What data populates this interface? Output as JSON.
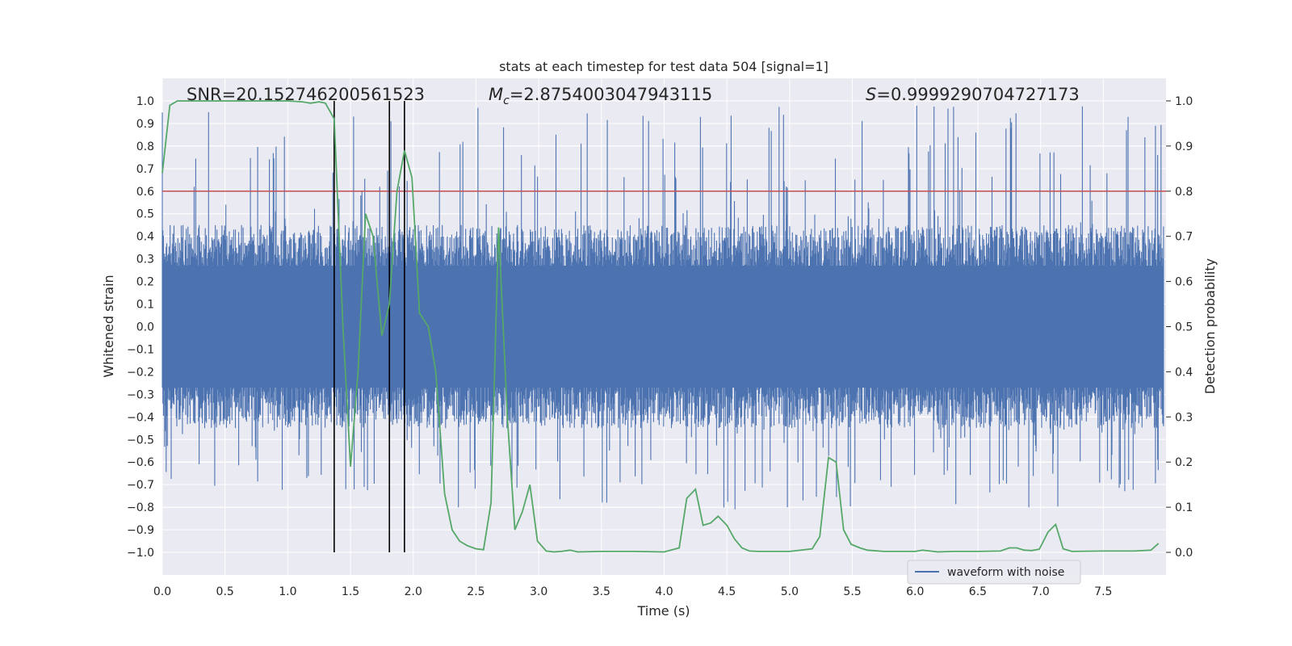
{
  "chart_data": {
    "type": "line",
    "title": "stats at each timestep for test data 504 [signal=1]",
    "xlabel": "Time (s)",
    "ylabel_left": "Whitened strain",
    "ylabel_right": "Detection probability",
    "xlim": [
      0.0,
      8.0
    ],
    "ylim_left": [
      -1.1,
      1.1
    ],
    "ylim_right": [
      -0.05,
      1.05
    ],
    "x_ticks": [
      0.0,
      0.5,
      1.0,
      1.5,
      2.0,
      2.5,
      3.0,
      3.5,
      4.0,
      4.5,
      5.0,
      5.5,
      6.0,
      6.5,
      7.0,
      7.5
    ],
    "x_tick_labels": [
      "0.0",
      "0.5",
      "1.0",
      "1.5",
      "2.0",
      "2.5",
      "3.0",
      "3.5",
      "4.0",
      "4.5",
      "5.0",
      "5.5",
      "6.0",
      "6.5",
      "7.0",
      "7.5"
    ],
    "y_left_ticks": [
      -1.0,
      -0.9,
      -0.8,
      -0.7,
      -0.6,
      -0.5,
      -0.4,
      -0.3,
      -0.2,
      -0.1,
      0.0,
      0.1,
      0.2,
      0.3,
      0.4,
      0.5,
      0.6,
      0.7,
      0.8,
      0.9,
      1.0
    ],
    "y_left_tick_labels": [
      "−1.0",
      "−0.9",
      "−0.8",
      "−0.7",
      "−0.6",
      "−0.5",
      "−0.4",
      "−0.3",
      "−0.2",
      "−0.1",
      "0.0",
      "0.1",
      "0.2",
      "0.3",
      "0.4",
      "0.5",
      "0.6",
      "0.7",
      "0.8",
      "0.9",
      "1.0"
    ],
    "y_right_ticks": [
      0.0,
      0.1,
      0.2,
      0.3,
      0.4,
      0.5,
      0.6,
      0.7,
      0.8,
      0.9,
      1.0
    ],
    "y_right_tick_labels": [
      "0.0",
      "0.1",
      "0.2",
      "0.3",
      "0.4",
      "0.5",
      "0.6",
      "0.7",
      "0.8",
      "0.9",
      "1.0"
    ],
    "grid": true,
    "legend": {
      "entries": [
        "waveform with noise"
      ],
      "location": "lower-right"
    },
    "annotations": {
      "snr": "SNR=20.152746200561523",
      "mc_symbol": "M",
      "mc_sub": "c",
      "mc_value": "=2.8754003047943115",
      "s_symbol": "S",
      "s_value": "=0.9999290704727173"
    },
    "threshold_right": 0.8,
    "vertical_lines": [
      {
        "x": 1.37,
        "y_range": [
          -1.0,
          1.0
        ]
      },
      {
        "x": 1.81,
        "y_range": [
          -1.0,
          1.0
        ]
      },
      {
        "x": 1.93,
        "y_range": [
          -1.0,
          1.0
        ]
      }
    ],
    "series": [
      {
        "name": "waveform with noise",
        "axis": "left",
        "kind": "noise_envelope",
        "time_range": [
          0.0,
          8.0
        ],
        "typical_amplitude": 0.45,
        "peak_amplitude": 0.98,
        "color": "#4c72b0"
      },
      {
        "name": "detection probability",
        "axis": "right",
        "color": "#55a868",
        "x": [
          0.0,
          0.06,
          0.12,
          0.25,
          0.5,
          0.75,
          1.0,
          1.12,
          1.18,
          1.25,
          1.3,
          1.37,
          1.44,
          1.5,
          1.56,
          1.62,
          1.68,
          1.75,
          1.81,
          1.87,
          1.93,
          1.99,
          2.05,
          2.12,
          2.18,
          2.25,
          2.31,
          2.37,
          2.43,
          2.5,
          2.56,
          2.62,
          2.68,
          2.75,
          2.81,
          2.87,
          2.93,
          2.99,
          3.06,
          3.12,
          3.18,
          3.25,
          3.31,
          3.5,
          3.75,
          4.0,
          4.12,
          4.18,
          4.25,
          4.31,
          4.37,
          4.43,
          4.5,
          4.56,
          4.62,
          4.68,
          4.75,
          5.0,
          5.18,
          5.24,
          5.31,
          5.37,
          5.43,
          5.49,
          5.56,
          5.62,
          5.75,
          6.0,
          6.06,
          6.18,
          6.31,
          6.5,
          6.68,
          6.75,
          6.81,
          6.87,
          6.93,
          6.99,
          7.06,
          7.12,
          7.18,
          7.25,
          7.5,
          7.75,
          7.88,
          7.94
        ],
        "y": [
          0.84,
          0.99,
          1.0,
          1.0,
          1.0,
          1.0,
          1.0,
          0.998,
          0.995,
          0.998,
          0.995,
          0.96,
          0.5,
          0.19,
          0.4,
          0.75,
          0.7,
          0.48,
          0.55,
          0.8,
          0.89,
          0.83,
          0.53,
          0.5,
          0.4,
          0.13,
          0.05,
          0.025,
          0.015,
          0.008,
          0.006,
          0.11,
          0.72,
          0.3,
          0.05,
          0.09,
          0.15,
          0.025,
          0.003,
          0.001,
          0.002,
          0.005,
          0.001,
          0.002,
          0.002,
          0.001,
          0.01,
          0.12,
          0.14,
          0.06,
          0.065,
          0.08,
          0.06,
          0.03,
          0.01,
          0.003,
          0.002,
          0.002,
          0.008,
          0.035,
          0.21,
          0.2,
          0.05,
          0.018,
          0.01,
          0.005,
          0.002,
          0.002,
          0.005,
          0.001,
          0.002,
          0.002,
          0.003,
          0.01,
          0.01,
          0.005,
          0.004,
          0.007,
          0.045,
          0.062,
          0.008,
          0.002,
          0.003,
          0.003,
          0.005,
          0.02
        ]
      }
    ]
  }
}
